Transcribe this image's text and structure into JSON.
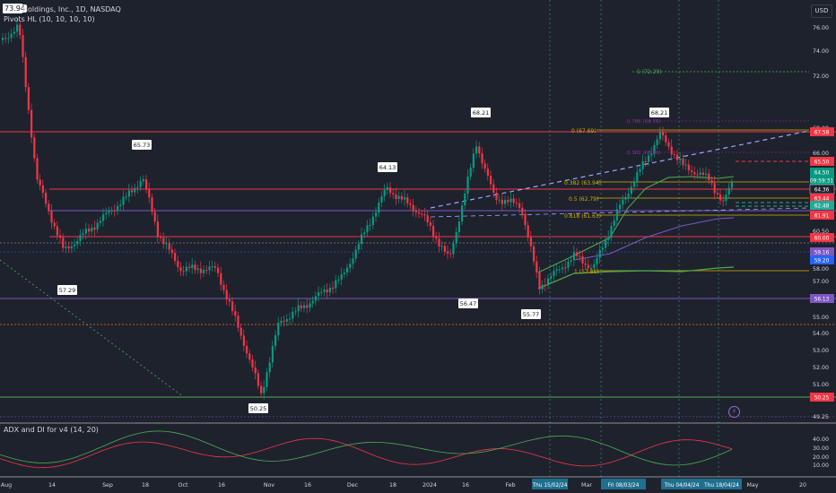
{
  "header": {
    "symbol_badge": "73.94",
    "title": "Holdings, Inc., 1D, NASDAQ",
    "indicator": "Pivots HL (10, 10, 10, 10)",
    "currency": "USD"
  },
  "lower_pane": {
    "title": "ADX and DI for v4 (14, 20)"
  },
  "price_axis": {
    "ticks": [
      "76.00",
      "74.00",
      "72.00",
      "68.00",
      "66.00",
      "62.00",
      "60.50",
      "58.00",
      "57.00",
      "55.00",
      "54.00",
      "53.00",
      "52.00",
      "51.00",
      "49.25"
    ],
    "badges": [
      {
        "text": "67.58",
        "color": "#f23645"
      },
      {
        "text": "65.50",
        "color": "#f23645"
      },
      {
        "text": "64.50",
        "color": "#089981"
      },
      {
        "text": "09:59:31",
        "color": "#089981"
      },
      {
        "text": "64.36",
        "color": "#1e222d"
      },
      {
        "text": "63.44",
        "color": "#f23645"
      },
      {
        "text": "62.48",
        "color": "#22ab94"
      },
      {
        "text": "61.91",
        "color": "#f23645"
      },
      {
        "text": "60.00",
        "color": "#f23645"
      },
      {
        "text": "59.16",
        "color": "#7e57c2"
      },
      {
        "text": "59.20",
        "color": "#2962ff"
      },
      {
        "text": "56.13",
        "color": "#7e57c2"
      },
      {
        "text": "50.25",
        "color": "#f23645"
      }
    ]
  },
  "adx_axis": {
    "ticks": [
      "40.00",
      "30.00",
      "20.00",
      "10.00"
    ]
  },
  "time_axis": {
    "labels": [
      "Aug",
      "14",
      "Sep",
      "18",
      "Oct",
      "16",
      "Nov",
      "16",
      "Dec",
      "18",
      "2024",
      "16",
      "Feb",
      "Mar",
      "18",
      "May",
      "20"
    ],
    "highlights": [
      "Thu 15/02/24",
      "Fri 08/03/24",
      "Thu 04/04/24",
      "Thu 18/04/24"
    ]
  },
  "pivot_labels": [
    "73.94",
    "65.73",
    "57.29",
    "50.25",
    "64.13",
    "68.21",
    "56.47",
    "55.77",
    "68.21"
  ],
  "fib_labels": [
    "1 (72.29)",
    "0 (67.69)",
    "0.382 (63.94)",
    "0.5 (62.79)",
    "0.618 (61.63)",
    "1 (57.88)"
  ],
  "fib_small_labels": [
    "0.786 (68.76)",
    "0.382 (67.19)"
  ],
  "colors": {
    "up": "#089981",
    "down": "#f23645",
    "background": "#1e222d"
  },
  "icons": {
    "bolt": "lightning-icon"
  }
}
